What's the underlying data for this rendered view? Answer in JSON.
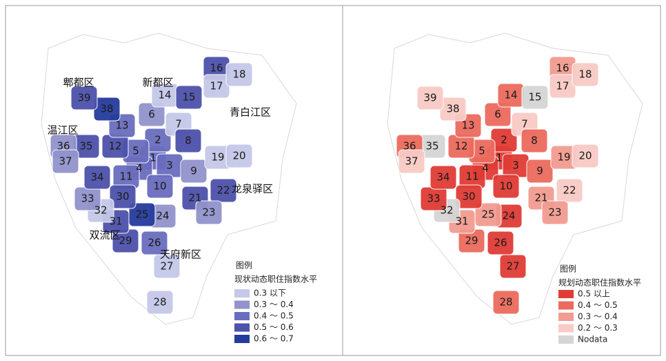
{
  "panels": [
    {
      "districts": [
        {
          "label": "郫都区"
        },
        {
          "label": "新都区"
        },
        {
          "label": "青白江区"
        },
        {
          "label": "温江区"
        },
        {
          "label": "龙泉驿区"
        },
        {
          "label": "双流区"
        },
        {
          "label": "天府新区"
        }
      ],
      "legend": {
        "title": "图例",
        "subtitle": "现状动态职住指数水平",
        "items": [
          {
            "label": "0.3 以下",
            "color": "#c5c8e8"
          },
          {
            "label": "0.3 ～ 0.4",
            "color": "#9193cc"
          },
          {
            "label": "0.4 ～ 0.5",
            "color": "#6a6dbd"
          },
          {
            "label": "0.5 ～ 0.6",
            "color": "#4d52aa"
          },
          {
            "label": "0.6 ～ 0.7",
            "color": "#253c9c"
          }
        ]
      },
      "zones": [
        {
          "id": "1",
          "color": "#6a6dbd"
        },
        {
          "id": "2",
          "color": "#6a6dbd"
        },
        {
          "id": "3",
          "color": "#6a6dbd"
        },
        {
          "id": "4",
          "color": "#6a6dbd"
        },
        {
          "id": "5",
          "color": "#6a6dbd"
        },
        {
          "id": "6",
          "color": "#9193cc"
        },
        {
          "id": "7",
          "color": "#c5c8e8"
        },
        {
          "id": "8",
          "color": "#4d52aa"
        },
        {
          "id": "9",
          "color": "#9193cc"
        },
        {
          "id": "10",
          "color": "#6a6dbd"
        },
        {
          "id": "11",
          "color": "#6a6dbd"
        },
        {
          "id": "12",
          "color": "#4d52aa"
        },
        {
          "id": "13",
          "color": "#6a6dbd"
        },
        {
          "id": "14",
          "color": "#c5c8e8"
        },
        {
          "id": "15",
          "color": "#4d52aa"
        },
        {
          "id": "16",
          "color": "#4d52aa"
        },
        {
          "id": "17",
          "color": "#c5c8e8"
        },
        {
          "id": "18",
          "color": "#c5c8e8"
        },
        {
          "id": "19",
          "color": "#c5c8e8"
        },
        {
          "id": "20",
          "color": "#c5c8e8"
        },
        {
          "id": "21",
          "color": "#4d52aa"
        },
        {
          "id": "22",
          "color": "#4d52aa"
        },
        {
          "id": "23",
          "color": "#9193cc"
        },
        {
          "id": "24",
          "color": "#9193cc"
        },
        {
          "id": "25",
          "color": "#253c9c"
        },
        {
          "id": "26",
          "color": "#6a6dbd"
        },
        {
          "id": "27",
          "color": "#c5c8e8"
        },
        {
          "id": "28",
          "color": "#c5c8e8"
        },
        {
          "id": "29",
          "color": "#4d52aa"
        },
        {
          "id": "30",
          "color": "#4d52aa"
        },
        {
          "id": "31",
          "color": "#4d52aa"
        },
        {
          "id": "32",
          "color": "#c5c8e8"
        },
        {
          "id": "33",
          "color": "#9193cc"
        },
        {
          "id": "34",
          "color": "#4d52aa"
        },
        {
          "id": "35",
          "color": "#4d52aa"
        },
        {
          "id": "36",
          "color": "#9193cc"
        },
        {
          "id": "37",
          "color": "#9193cc"
        },
        {
          "id": "38",
          "color": "#253c9c"
        },
        {
          "id": "39",
          "color": "#4d52aa"
        }
      ]
    },
    {
      "legend": {
        "title": "图例",
        "subtitle": "规划动态职住指数水平",
        "items": [
          {
            "label": "0.5 以上",
            "color": "#e03c35"
          },
          {
            "label": "0.4 ～ 0.5",
            "color": "#ec6b5e"
          },
          {
            "label": "0.3 ～ 0.4",
            "color": "#f29b90"
          },
          {
            "label": "0.2 ～ 0.3",
            "color": "#f8cbc6"
          },
          {
            "label": "Nodata",
            "color": "#d5d5d5"
          }
        ]
      },
      "zones": [
        {
          "id": "1",
          "color": "#e03c35"
        },
        {
          "id": "2",
          "color": "#e03c35"
        },
        {
          "id": "3",
          "color": "#e03c35"
        },
        {
          "id": "4",
          "color": "#e03c35"
        },
        {
          "id": "5",
          "color": "#ec6b5e"
        },
        {
          "id": "6",
          "color": "#ec6b5e"
        },
        {
          "id": "7",
          "color": "#f8cbc6"
        },
        {
          "id": "8",
          "color": "#ec6b5e"
        },
        {
          "id": "9",
          "color": "#ec6b5e"
        },
        {
          "id": "10",
          "color": "#e03c35"
        },
        {
          "id": "11",
          "color": "#e03c35"
        },
        {
          "id": "12",
          "color": "#ec6b5e"
        },
        {
          "id": "13",
          "color": "#ec6b5e"
        },
        {
          "id": "14",
          "color": "#ec6b5e"
        },
        {
          "id": "15",
          "color": "#d5d5d5"
        },
        {
          "id": "16",
          "color": "#f29b90"
        },
        {
          "id": "17",
          "color": "#f8cbc6"
        },
        {
          "id": "18",
          "color": "#f8cbc6"
        },
        {
          "id": "19",
          "color": "#f29b90"
        },
        {
          "id": "20",
          "color": "#f8cbc6"
        },
        {
          "id": "21",
          "color": "#f29b90"
        },
        {
          "id": "22",
          "color": "#f8cbc6"
        },
        {
          "id": "23",
          "color": "#f29b90"
        },
        {
          "id": "24",
          "color": "#e03c35"
        },
        {
          "id": "25",
          "color": "#f29b90"
        },
        {
          "id": "26",
          "color": "#e03c35"
        },
        {
          "id": "27",
          "color": "#e03c35"
        },
        {
          "id": "28",
          "color": "#ec6b5e"
        },
        {
          "id": "29",
          "color": "#ec6b5e"
        },
        {
          "id": "30",
          "color": "#e03c35"
        },
        {
          "id": "31",
          "color": "#f29b90"
        },
        {
          "id": "32",
          "color": "#d5d5d5"
        },
        {
          "id": "33",
          "color": "#e03c35"
        },
        {
          "id": "34",
          "color": "#e03c35"
        },
        {
          "id": "35",
          "color": "#d5d5d5"
        },
        {
          "id": "36",
          "color": "#ec6b5e"
        },
        {
          "id": "37",
          "color": "#f8cbc6"
        },
        {
          "id": "38",
          "color": "#f8cbc6"
        },
        {
          "id": "39",
          "color": "#f8cbc6"
        }
      ]
    }
  ]
}
